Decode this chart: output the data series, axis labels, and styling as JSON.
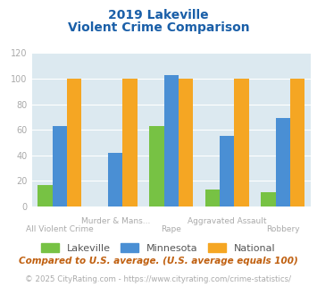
{
  "title_line1": "2019 Lakeville",
  "title_line2": "Violent Crime Comparison",
  "categories_top": [
    "Murder & Mans...",
    "Aggravated Assault"
  ],
  "categories_bottom": [
    "All Violent Crime",
    "Rape",
    "Robbery"
  ],
  "lakeville": [
    17,
    0,
    63,
    13,
    11
  ],
  "minnesota": [
    63,
    42,
    103,
    55,
    69
  ],
  "national": [
    100,
    100,
    100,
    100,
    100
  ],
  "colors": {
    "lakeville": "#77c244",
    "minnesota": "#4a8fd4",
    "national": "#f5a623"
  },
  "ylim": [
    0,
    120
  ],
  "yticks": [
    0,
    20,
    40,
    60,
    80,
    100,
    120
  ],
  "title_color": "#1a5fa8",
  "bg_color": "#dce9f0",
  "footnote1": "Compared to U.S. average. (U.S. average equals 100)",
  "footnote2": "© 2025 CityRating.com - https://www.cityrating.com/crime-statistics/",
  "footnote1_color": "#c06010",
  "footnote2_color": "#aaaaaa",
  "footnote2_link_color": "#4a8fd4"
}
